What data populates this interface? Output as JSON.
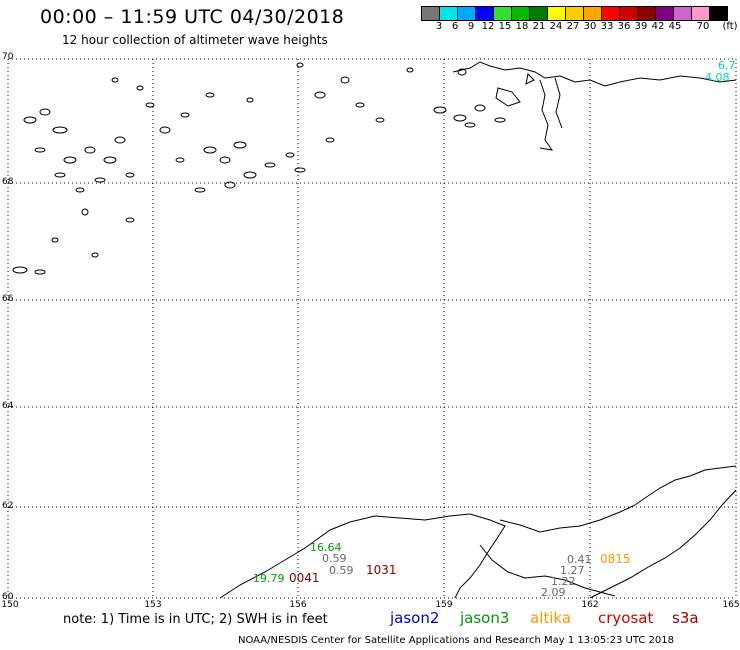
{
  "header": {
    "title": "00:00 – 11:59 UTC 04/30/2018",
    "subtitle": "12 hour collection of altimeter wave heights"
  },
  "legend": {
    "colors": [
      "#777777",
      "#00e6e6",
      "#00aaff",
      "#0000ff",
      "#33dd33",
      "#00b800",
      "#007a00",
      "#ffff00",
      "#ffcc00",
      "#ffa500",
      "#ff0000",
      "#cc0000",
      "#8b0000",
      "#800080",
      "#cc66cc",
      "#ff99cc",
      "#000000"
    ],
    "labels": [
      "3",
      "6",
      "9",
      "12",
      "15",
      "18",
      "21",
      "24",
      "27",
      "30",
      "33",
      "36",
      "39",
      "42",
      "45",
      "70"
    ],
    "unit": "(ft)"
  },
  "axes": {
    "y_ticks": [
      "70",
      "68",
      "66",
      "64",
      "62",
      "60"
    ],
    "x_ticks": [
      "150",
      "153",
      "156",
      "159",
      "162",
      "165"
    ]
  },
  "passes": [
    {
      "text": "6.7",
      "color": "#00cccc"
    },
    {
      "text": "4.08",
      "color": "#00cccc"
    },
    {
      "text": "16.64",
      "color": "#009900"
    },
    {
      "text": "0.59",
      "color": "#666666"
    },
    {
      "text": "0.59",
      "color": "#666666"
    },
    {
      "text": "1031",
      "color": "#800000"
    },
    {
      "text": "19.79",
      "color": "#009900"
    },
    {
      "text": "0041",
      "color": "#800000"
    },
    {
      "text": "0.41",
      "color": "#666666"
    },
    {
      "text": "0815",
      "color": "#ff9900"
    },
    {
      "text": "1.27",
      "color": "#666666"
    },
    {
      "text": "1.22",
      "color": "#666666"
    },
    {
      "text": "2.09",
      "color": "#666666"
    }
  ],
  "note": "note:  1) Time is in UTC;  2) SWH is in feet",
  "satellites": [
    {
      "name": "jason2",
      "color": "#0000cc"
    },
    {
      "name": "jason3",
      "color": "#009900"
    },
    {
      "name": "altika",
      "color": "#ff9900"
    },
    {
      "name": "cryosat",
      "color": "#cc0000"
    },
    {
      "name": "s3a",
      "color": "#990000"
    }
  ],
  "footer": "NOAA/NESDIS Center for Satellite Applications and Research    May  1 13:05:23 UTC 2018"
}
